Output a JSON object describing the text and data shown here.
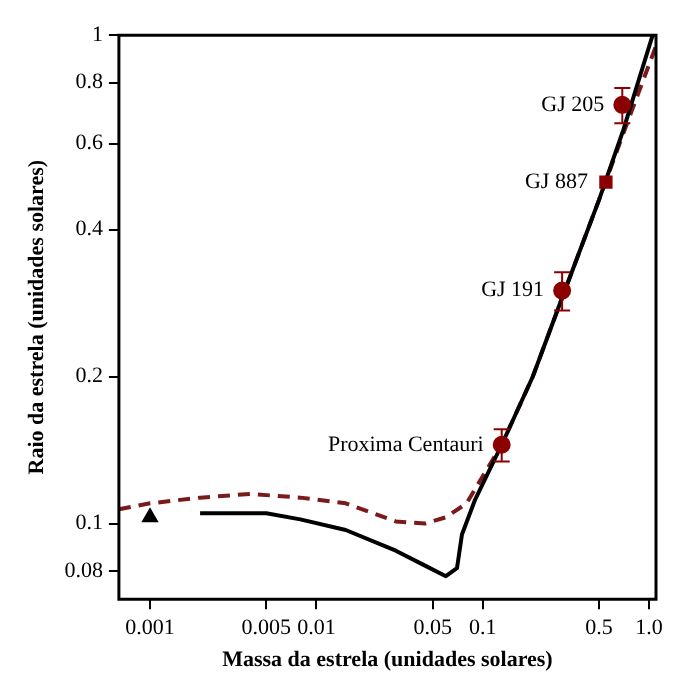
{
  "chart_data": {
    "type": "line",
    "xlabel": "Massa da estrela (unidades solares)",
    "ylabel": "Raio da estrela (unidades solares)",
    "log": "xy",
    "grid": false,
    "legend": false,
    "xlim": [
      0.00065,
      1.1
    ],
    "xticks": [
      0.001,
      0.005,
      0.01,
      0.05,
      0.1,
      0.5,
      {
        "value": 1,
        "label": "1.0"
      }
    ],
    "ylim": [
      0.07,
      1
    ],
    "yticks": [
      0.08,
      0.1,
      0.2,
      0.4,
      0.6,
      0.8,
      1
    ],
    "series": [
      {
        "color": "#000000",
        "line_style": "solid",
        "marker": "none",
        "x": [
          0.002,
          0.005,
          0.008,
          0.015,
          0.03,
          0.045,
          0.06,
          0.07,
          0.075,
          0.09,
          0.13,
          0.2,
          0.3,
          0.5,
          0.7,
          1.05
        ],
        "values": [
          0.105,
          0.105,
          0.102,
          0.097,
          0.088,
          0.082,
          0.078,
          0.081,
          0.095,
          0.112,
          0.145,
          0.2,
          0.29,
          0.46,
          0.64,
          1.0
        ]
      },
      {
        "color": "#7a1a1a",
        "line_style": "dashed",
        "marker": "none",
        "x": [
          0.00065,
          0.001,
          0.002,
          0.004,
          0.008,
          0.015,
          0.03,
          0.045,
          0.06,
          0.08,
          0.1,
          0.13,
          0.2,
          0.3,
          0.5,
          0.7,
          1.1
        ],
        "values": [
          0.107,
          0.11,
          0.113,
          0.115,
          0.113,
          0.11,
          0.101,
          0.1,
          0.103,
          0.11,
          0.125,
          0.145,
          0.2,
          0.29,
          0.46,
          0.63,
          0.95
        ]
      },
      {
        "type": "scatter",
        "color": "#8b0000",
        "marker": "circle",
        "x": [
          0.13,
          0.3,
          0.69
        ],
        "values": [
          0.145,
          0.3,
          0.72
        ],
        "errors": [
          0.011,
          0.027,
          0.06
        ]
      },
      {
        "type": "scatter",
        "color": "#8b0000",
        "marker": "square",
        "x": [
          0.55
        ],
        "values": [
          0.5
        ]
      },
      {
        "type": "scatter",
        "color": "#000000",
        "marker": "triangle",
        "x": [
          0.001
        ],
        "values": [
          0.103
        ]
      }
    ],
    "annotations": [
      {
        "text": "Proxima Centauri",
        "x": 0.13,
        "y": 0.145
      },
      {
        "text": "GJ 191",
        "x": 0.3,
        "y": 0.3
      },
      {
        "text": "GJ 887",
        "x": 0.55,
        "y": 0.5
      },
      {
        "text": "GJ 205",
        "x": 0.69,
        "y": 0.72
      }
    ]
  }
}
